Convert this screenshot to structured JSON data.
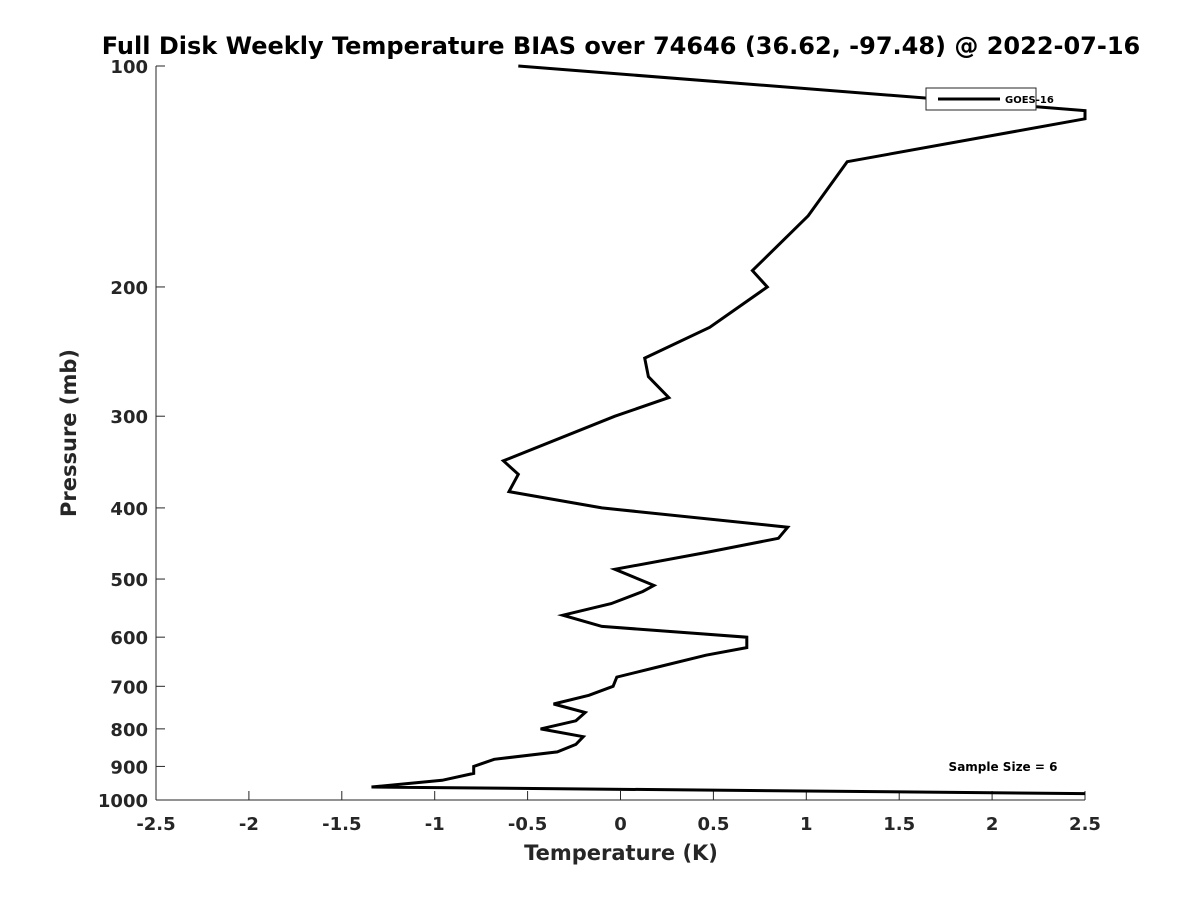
{
  "chart_data": {
    "type": "line",
    "title": "Full Disk Weekly Temperature BIAS over 74646 (36.62, -97.48) @ 2022-07-16",
    "xlabel": "Temperature (K)",
    "ylabel": "Pressure (mb)",
    "xlim": [
      -2.5,
      2.5
    ],
    "ylim": [
      100,
      1000
    ],
    "y_scale": "log",
    "y_reversed": true,
    "x_ticks": [
      "-2.5",
      "-2",
      "-1.5",
      "-1",
      "-0.5",
      "0",
      "0.5",
      "1",
      "1.5",
      "2",
      "2.5"
    ],
    "y_ticks": [
      "100",
      "200",
      "300",
      "400",
      "500",
      "600",
      "700",
      "800",
      "900",
      "1000"
    ],
    "grid": false,
    "legend_position": "top-right",
    "annotation": "Sample Size = 6",
    "series": [
      {
        "name": "GOES-16",
        "color": "#000000",
        "points": [
          {
            "x": -0.55,
            "y": 100
          },
          {
            "x": 2.5,
            "y": 115
          },
          {
            "x": 2.5,
            "y": 118
          },
          {
            "x": 1.22,
            "y": 135
          },
          {
            "x": 1.01,
            "y": 160
          },
          {
            "x": 0.71,
            "y": 190
          },
          {
            "x": 0.79,
            "y": 200
          },
          {
            "x": 0.48,
            "y": 227
          },
          {
            "x": 0.13,
            "y": 250
          },
          {
            "x": 0.15,
            "y": 265
          },
          {
            "x": 0.26,
            "y": 283
          },
          {
            "x": -0.03,
            "y": 300
          },
          {
            "x": -0.63,
            "y": 345
          },
          {
            "x": -0.55,
            "y": 360
          },
          {
            "x": -0.6,
            "y": 380
          },
          {
            "x": -0.1,
            "y": 400
          },
          {
            "x": 0.9,
            "y": 425
          },
          {
            "x": 0.85,
            "y": 440
          },
          {
            "x": 0.46,
            "y": 460
          },
          {
            "x": -0.03,
            "y": 485
          },
          {
            "x": 0.18,
            "y": 510
          },
          {
            "x": 0.12,
            "y": 520
          },
          {
            "x": -0.05,
            "y": 540
          },
          {
            "x": -0.31,
            "y": 560
          },
          {
            "x": -0.1,
            "y": 580
          },
          {
            "x": 0.68,
            "y": 600
          },
          {
            "x": 0.68,
            "y": 620
          },
          {
            "x": 0.46,
            "y": 635
          },
          {
            "x": 0.19,
            "y": 660
          },
          {
            "x": -0.02,
            "y": 680
          },
          {
            "x": -0.04,
            "y": 700
          },
          {
            "x": -0.17,
            "y": 720
          },
          {
            "x": -0.36,
            "y": 740
          },
          {
            "x": -0.19,
            "y": 760
          },
          {
            "x": -0.24,
            "y": 780
          },
          {
            "x": -0.43,
            "y": 800
          },
          {
            "x": -0.2,
            "y": 820
          },
          {
            "x": -0.24,
            "y": 840
          },
          {
            "x": -0.34,
            "y": 860
          },
          {
            "x": -0.68,
            "y": 880
          },
          {
            "x": -0.79,
            "y": 900
          },
          {
            "x": -0.79,
            "y": 920
          },
          {
            "x": -0.96,
            "y": 940
          },
          {
            "x": -1.34,
            "y": 960
          },
          {
            "x": 2.5,
            "y": 980
          }
        ]
      }
    ]
  }
}
